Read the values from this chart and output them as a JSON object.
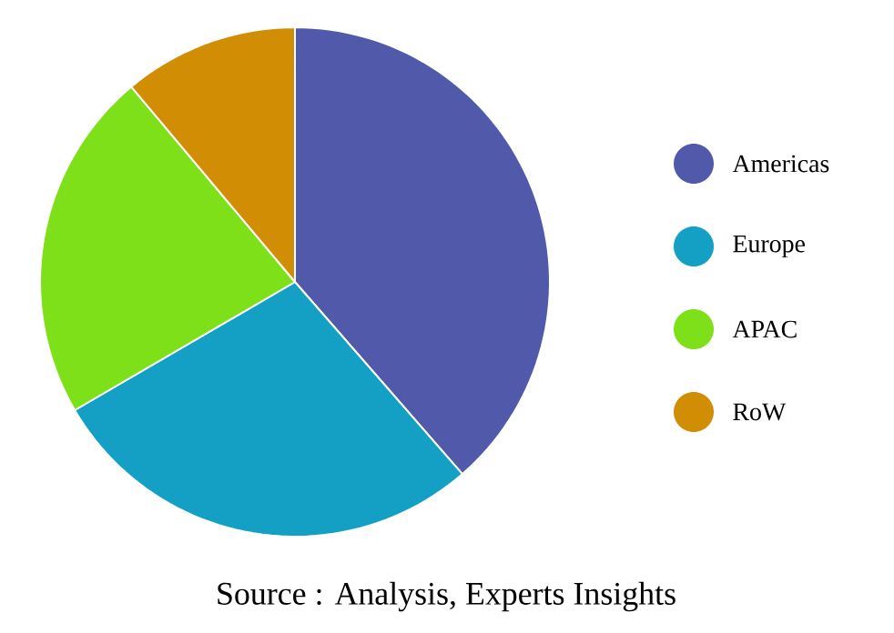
{
  "chart_data": {
    "type": "pie",
    "categories": [
      "Americas",
      "Europe",
      "APAC",
      "RoW"
    ],
    "values": [
      38.6,
      28.0,
      22.3,
      11.1
    ],
    "colors": [
      "#5159ab",
      "#14a0c4",
      "#7ee018",
      "#d18e05"
    ],
    "legend": "right",
    "annotations": [
      "Source : Analysis, Experts Insights"
    ]
  }
}
